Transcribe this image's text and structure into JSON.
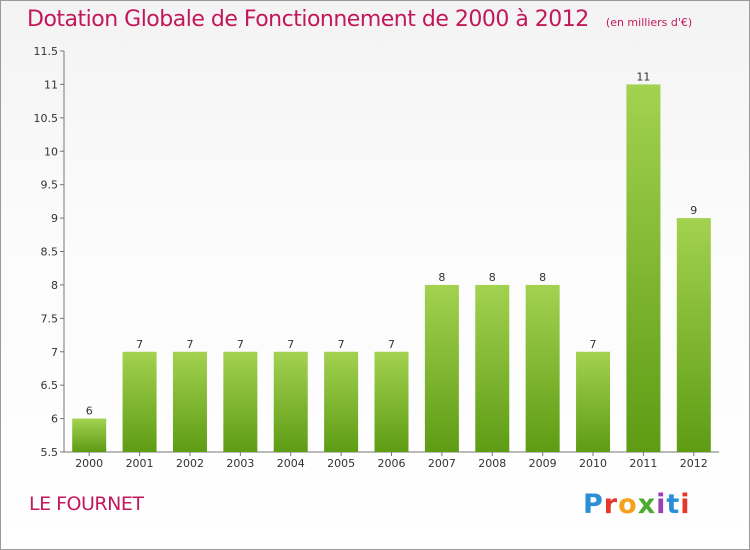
{
  "header": {
    "title": "Dotation Globale de Fonctionnement de 2000 à 2012",
    "subtitle": "(en milliers d'€)"
  },
  "footer": {
    "place": "LE FOURNET",
    "logo_text": "Proxiti"
  },
  "colors": {
    "title": "#c2185b",
    "bar_top": "#a3d250",
    "bar_bottom": "#5e9c14"
  },
  "chart_data": {
    "type": "bar",
    "title": "Dotation Globale de Fonctionnement de 2000 à 2012",
    "subtitle": "(en milliers d'€)",
    "xlabel": "",
    "ylabel": "",
    "categories": [
      "2000",
      "2001",
      "2002",
      "2003",
      "2004",
      "2005",
      "2006",
      "2007",
      "2008",
      "2009",
      "2010",
      "2011",
      "2012"
    ],
    "values": [
      6,
      7,
      7,
      7,
      7,
      7,
      7,
      8,
      8,
      8,
      7,
      11,
      9
    ],
    "ylim": [
      5.5,
      11.5
    ],
    "yticks": [
      "5.5",
      "6",
      "6.5",
      "7",
      "7.5",
      "8",
      "8.5",
      "9",
      "9.5",
      "10",
      "10.5",
      "11",
      "11.5"
    ],
    "grid": false,
    "legend": "none"
  }
}
